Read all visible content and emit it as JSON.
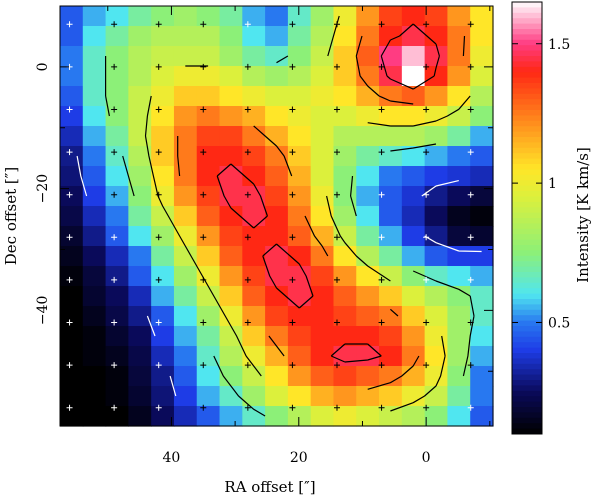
{
  "chart_data": {
    "type": "heatmap",
    "xlabel": "RA offset  [″]",
    "ylabel": "Dec offset  [″]",
    "colorbar_label": "Intensity  [K km/s]",
    "x_ticks": [
      {
        "value": 40,
        "label": "40"
      },
      {
        "value": 20,
        "label": "20"
      },
      {
        "value": 0,
        "label": "0"
      }
    ],
    "y_ticks": [
      {
        "value": 0,
        "label": "0"
      },
      {
        "value": -20,
        "label": "−20"
      },
      {
        "value": -40,
        "label": "−40"
      }
    ],
    "colorbar_ticks": [
      {
        "value": 1.5,
        "label": "1.5"
      },
      {
        "value": 1.0,
        "label": "1"
      },
      {
        "value": 0.5,
        "label": "0.5"
      }
    ],
    "xlim": [
      57.5,
      -10.5
    ],
    "ylim": [
      -59,
      10
    ],
    "colorbar_range": [
      0.1,
      1.65
    ],
    "grid_step": 3.5,
    "grid_x_start": 56,
    "grid_y_start": 8,
    "intensity_grid": [
      [
        0.45,
        0.55,
        0.6,
        0.7,
        0.75,
        0.8,
        0.75,
        0.7,
        0.55,
        0.5,
        0.65,
        0.8,
        1.0,
        1.2,
        1.35,
        1.4,
        1.35,
        1.2,
        1.05
      ],
      [
        0.45,
        0.6,
        0.7,
        0.8,
        0.85,
        0.85,
        0.85,
        0.75,
        0.6,
        0.55,
        0.7,
        0.85,
        1.05,
        1.25,
        1.4,
        1.45,
        1.4,
        1.25,
        1.05
      ],
      [
        0.5,
        0.65,
        0.75,
        0.85,
        0.9,
        0.9,
        0.9,
        0.8,
        0.7,
        0.65,
        0.75,
        0.9,
        1.1,
        1.3,
        1.5,
        1.6,
        1.45,
        1.25,
        1.0
      ],
      [
        0.5,
        0.65,
        0.75,
        0.85,
        0.95,
        1.0,
        1.0,
        0.95,
        0.85,
        0.8,
        0.85,
        0.95,
        1.1,
        1.25,
        1.45,
        1.65,
        1.4,
        1.2,
        0.95
      ],
      [
        0.45,
        0.65,
        0.75,
        0.9,
        1.0,
        1.1,
        1.1,
        1.05,
        1.0,
        0.95,
        0.95,
        1.0,
        1.05,
        1.15,
        1.25,
        1.3,
        1.2,
        1.05,
        0.85
      ],
      [
        0.4,
        0.6,
        0.75,
        0.9,
        1.05,
        1.2,
        1.25,
        1.2,
        1.15,
        1.05,
        1.0,
        0.95,
        0.95,
        1.0,
        1.05,
        1.05,
        1.0,
        0.9,
        0.75
      ],
      [
        0.35,
        0.55,
        0.7,
        0.9,
        1.1,
        1.25,
        1.35,
        1.35,
        1.25,
        1.15,
        1.05,
        0.95,
        0.85,
        0.85,
        0.85,
        0.85,
        0.8,
        0.7,
        0.55
      ],
      [
        0.3,
        0.5,
        0.65,
        0.85,
        1.1,
        1.25,
        1.4,
        1.4,
        1.35,
        1.25,
        1.1,
        0.95,
        0.8,
        0.7,
        0.65,
        0.6,
        0.55,
        0.5,
        0.45
      ],
      [
        0.28,
        0.45,
        0.6,
        0.8,
        1.05,
        1.25,
        1.4,
        1.45,
        1.4,
        1.3,
        1.15,
        0.95,
        0.75,
        0.6,
        0.5,
        0.45,
        0.4,
        0.38,
        0.35
      ],
      [
        0.25,
        0.4,
        0.55,
        0.75,
        1.0,
        1.2,
        1.35,
        1.45,
        1.45,
        1.35,
        1.2,
        1.0,
        0.75,
        0.55,
        0.45,
        0.38,
        0.3,
        0.25,
        0.2
      ],
      [
        0.22,
        0.35,
        0.5,
        0.7,
        0.9,
        1.1,
        1.3,
        1.4,
        1.45,
        1.4,
        1.25,
        1.05,
        0.8,
        0.6,
        0.45,
        0.35,
        0.25,
        0.15,
        0.12
      ],
      [
        0.18,
        0.3,
        0.45,
        0.6,
        0.8,
        1.0,
        1.2,
        1.35,
        1.4,
        1.4,
        1.3,
        1.15,
        0.9,
        0.7,
        0.55,
        0.4,
        0.3,
        0.2,
        0.18
      ],
      [
        0.15,
        0.25,
        0.35,
        0.5,
        0.7,
        0.9,
        1.1,
        1.3,
        1.4,
        1.45,
        1.4,
        1.25,
        1.05,
        0.85,
        0.7,
        0.55,
        0.45,
        0.4,
        0.4
      ],
      [
        0.12,
        0.2,
        0.3,
        0.45,
        0.6,
        0.8,
        1.0,
        1.2,
        1.35,
        1.45,
        1.45,
        1.35,
        1.2,
        1.05,
        0.9,
        0.75,
        0.65,
        0.6,
        0.55
      ],
      [
        0.1,
        0.18,
        0.25,
        0.35,
        0.55,
        0.7,
        0.9,
        1.1,
        1.3,
        1.4,
        1.45,
        1.4,
        1.3,
        1.2,
        1.1,
        0.95,
        0.85,
        0.75,
        0.65
      ],
      [
        0.1,
        0.15,
        0.22,
        0.3,
        0.45,
        0.6,
        0.8,
        1.0,
        1.2,
        1.35,
        1.4,
        1.4,
        1.35,
        1.3,
        1.25,
        1.1,
        0.95,
        0.8,
        0.65
      ],
      [
        0.1,
        0.12,
        0.18,
        0.25,
        0.4,
        0.55,
        0.7,
        0.9,
        1.1,
        1.25,
        1.35,
        1.4,
        1.4,
        1.4,
        1.35,
        1.2,
        1.0,
        0.8,
        0.6
      ],
      [
        0.1,
        0.12,
        0.15,
        0.22,
        0.35,
        0.5,
        0.65,
        0.85,
        1.0,
        1.15,
        1.3,
        1.4,
        1.45,
        1.45,
        1.4,
        1.25,
        1.05,
        0.8,
        0.55
      ],
      [
        0.1,
        0.1,
        0.12,
        0.2,
        0.3,
        0.45,
        0.6,
        0.75,
        0.9,
        1.05,
        1.2,
        1.3,
        1.35,
        1.3,
        1.25,
        1.15,
        1.0,
        0.75,
        0.5
      ],
      [
        0.1,
        0.1,
        0.12,
        0.18,
        0.28,
        0.4,
        0.55,
        0.65,
        0.8,
        0.95,
        1.05,
        1.15,
        1.2,
        1.15,
        1.1,
        1.0,
        0.9,
        0.7,
        0.5
      ],
      [
        0.1,
        0.1,
        0.1,
        0.15,
        0.25,
        0.35,
        0.45,
        0.55,
        0.65,
        0.75,
        0.85,
        0.95,
        1.0,
        0.95,
        0.9,
        0.85,
        0.75,
        0.6,
        0.45
      ]
    ]
  }
}
